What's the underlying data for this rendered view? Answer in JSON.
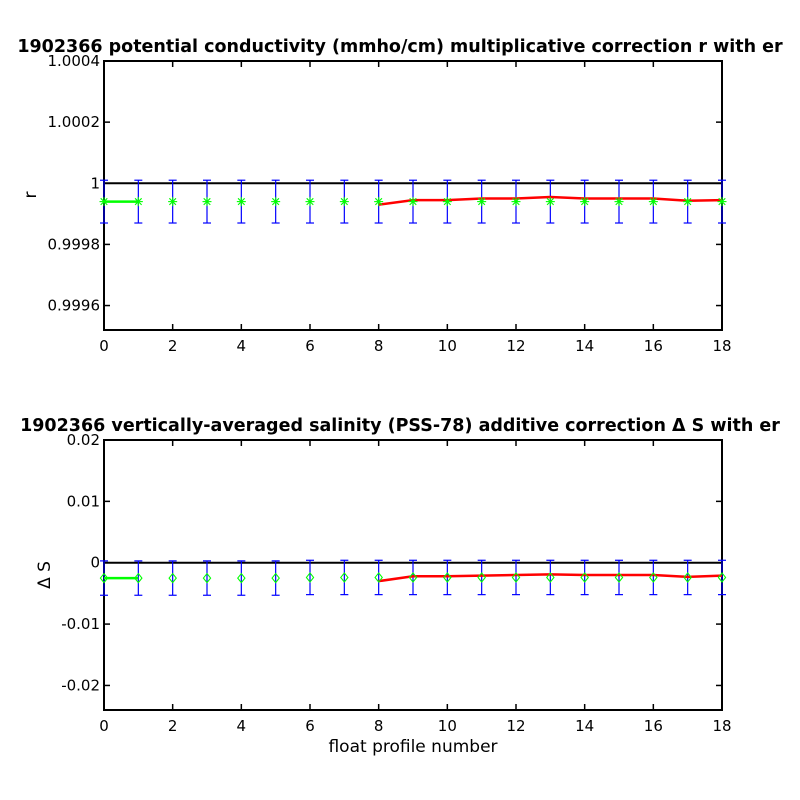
{
  "figure": {
    "background": "#ffffff",
    "colors": {
      "axes": "#000000",
      "zero_line": "#000000",
      "error_bars": "#0000ff",
      "points": "#00ff00",
      "fit_line": "#ff0000"
    }
  },
  "chart_data": [
    {
      "type": "line",
      "title": "1902366 potential conductivity (mmho/cm) multiplicative correction r with er",
      "xlabel": "",
      "ylabel": "r",
      "xlim": [
        0,
        18
      ],
      "ylim": [
        0.99952,
        1.0004
      ],
      "x_ticks": [
        0,
        2,
        4,
        6,
        8,
        10,
        12,
        14,
        16,
        18
      ],
      "y_ticks": [
        0.9996,
        0.9998,
        1,
        1.0002,
        1.0004
      ],
      "y_tick_labels": [
        "0.9996",
        "0.9998",
        "1",
        "1.0002",
        "1.0004"
      ],
      "reference_line": 1,
      "marker": "asterisk",
      "series": [
        {
          "role": "points",
          "x": [
            0,
            1,
            2,
            3,
            4,
            5,
            6,
            7,
            8,
            9,
            10,
            11,
            12,
            13,
            14,
            15,
            16,
            17,
            18
          ],
          "y": [
            0.99994,
            0.99994,
            0.99994,
            0.99994,
            0.99994,
            0.99994,
            0.99994,
            0.99994,
            0.99994,
            0.99994,
            0.99994,
            0.99994,
            0.99994,
            0.99994,
            0.99994,
            0.99994,
            0.99994,
            0.99994,
            0.99994
          ],
          "err": [
            7e-05,
            7e-05,
            7e-05,
            7e-05,
            7e-05,
            7e-05,
            7e-05,
            7e-05,
            7e-05,
            7e-05,
            7e-05,
            7e-05,
            7e-05,
            7e-05,
            7e-05,
            7e-05,
            7e-05,
            7e-05,
            7e-05
          ]
        },
        {
          "role": "fit_green",
          "x": [
            0,
            1
          ],
          "y": [
            0.99994,
            0.99994
          ]
        },
        {
          "role": "fit_red",
          "x": [
            8,
            9,
            10,
            11,
            12,
            13,
            14,
            15,
            16,
            17,
            18
          ],
          "y": [
            0.99993,
            0.999945,
            0.999945,
            0.99995,
            0.99995,
            0.999955,
            0.99995,
            0.99995,
            0.99995,
            0.999943,
            0.999945
          ]
        }
      ]
    },
    {
      "type": "line",
      "title": "1902366 vertically-averaged salinity (PSS-78) additive correction Δ S with er",
      "xlabel": "float profile number",
      "ylabel": "Δ S",
      "xlim": [
        0,
        18
      ],
      "ylim": [
        -0.024,
        0.02
      ],
      "x_ticks": [
        0,
        2,
        4,
        6,
        8,
        10,
        12,
        14,
        16,
        18
      ],
      "y_ticks": [
        -0.02,
        -0.01,
        0,
        0.01,
        0.02
      ],
      "y_tick_labels": [
        "-0.02",
        "-0.01",
        "0",
        "0.01",
        "0.02"
      ],
      "reference_line": 0,
      "marker": "diamond",
      "series": [
        {
          "role": "points",
          "x": [
            0,
            1,
            2,
            3,
            4,
            5,
            6,
            7,
            8,
            9,
            10,
            11,
            12,
            13,
            14,
            15,
            16,
            17,
            18
          ],
          "y": [
            -0.0025,
            -0.0025,
            -0.0025,
            -0.0025,
            -0.0025,
            -0.0025,
            -0.0024,
            -0.0024,
            -0.0024,
            -0.0024,
            -0.0024,
            -0.0024,
            -0.0024,
            -0.0024,
            -0.0024,
            -0.0024,
            -0.0024,
            -0.0024,
            -0.0024
          ],
          "err": [
            0.0028,
            0.0028,
            0.0028,
            0.0028,
            0.0028,
            0.0028,
            0.0028,
            0.0028,
            0.0028,
            0.0028,
            0.0028,
            0.0028,
            0.0028,
            0.0028,
            0.0028,
            0.0028,
            0.0028,
            0.0028,
            0.0028
          ]
        },
        {
          "role": "fit_green",
          "x": [
            0,
            1
          ],
          "y": [
            -0.0025,
            -0.0025
          ]
        },
        {
          "role": "fit_red",
          "x": [
            8,
            9,
            10,
            11,
            12,
            13,
            14,
            15,
            16,
            17,
            18
          ],
          "y": [
            -0.003,
            -0.0022,
            -0.0022,
            -0.0021,
            -0.002,
            -0.0019,
            -0.002,
            -0.002,
            -0.002,
            -0.0023,
            -0.0021
          ]
        }
      ]
    }
  ]
}
